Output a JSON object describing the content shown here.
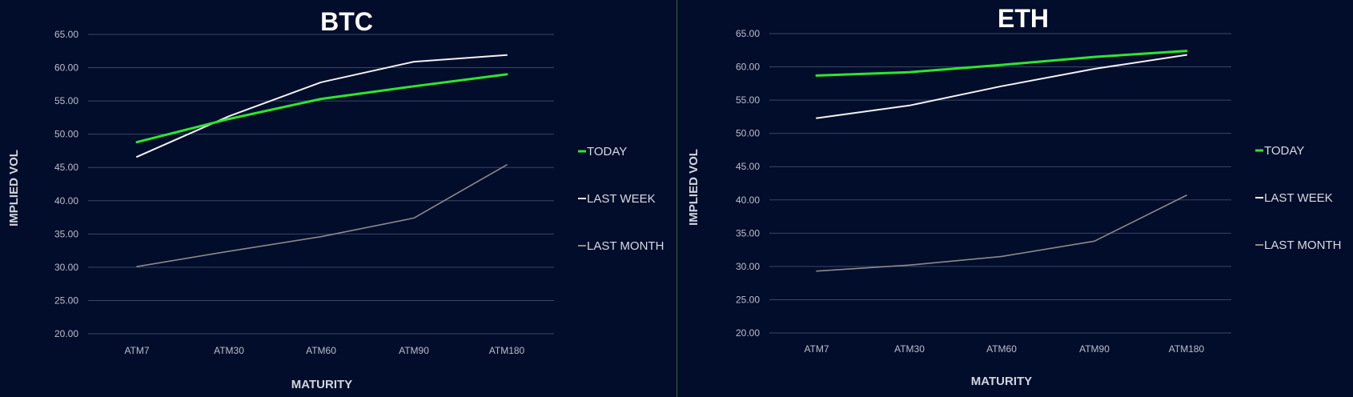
{
  "colors": {
    "background": "#020d2b",
    "gridline": "#3b4664",
    "today": "#2ee52e",
    "last_week": "#f2f2f2",
    "last_month": "#8a8a8a"
  },
  "chart_data": [
    {
      "type": "line",
      "title": "BTC",
      "xlabel": "MATURITY",
      "ylabel": "IMPLIED VOL",
      "categories": [
        "ATM7",
        "ATM30",
        "ATM60",
        "ATM90",
        "ATM180"
      ],
      "ylim": [
        20,
        65
      ],
      "yticks": [
        "20.00",
        "25.00",
        "30.00",
        "35.00",
        "40.00",
        "45.00",
        "50.00",
        "55.00",
        "60.00",
        "65.00"
      ],
      "grid": true,
      "legend_position": "right",
      "series": [
        {
          "name": "TODAY",
          "values": [
            48.8,
            52.3,
            55.3,
            57.2,
            59.0
          ]
        },
        {
          "name": "LAST WEEK",
          "values": [
            46.6,
            52.7,
            57.8,
            60.9,
            61.9
          ]
        },
        {
          "name": "LAST MONTH",
          "values": [
            30.1,
            32.4,
            34.6,
            37.4,
            45.4
          ]
        }
      ]
    },
    {
      "type": "line",
      "title": "ETH",
      "xlabel": "MATURITY",
      "ylabel": "IMPLIED VOL",
      "categories": [
        "ATM7",
        "ATM30",
        "ATM60",
        "ATM90",
        "ATM180"
      ],
      "ylim": [
        20,
        65
      ],
      "yticks": [
        "20.00",
        "25.00",
        "30.00",
        "35.00",
        "40.00",
        "45.00",
        "50.00",
        "55.00",
        "60.00",
        "65.00"
      ],
      "grid": true,
      "legend_position": "right",
      "series": [
        {
          "name": "TODAY",
          "values": [
            58.7,
            59.2,
            60.3,
            61.5,
            62.4
          ]
        },
        {
          "name": "LAST WEEK",
          "values": [
            52.3,
            54.2,
            57.1,
            59.7,
            61.8
          ]
        },
        {
          "name": "LAST MONTH",
          "values": [
            29.3,
            30.2,
            31.5,
            33.8,
            40.7
          ]
        }
      ]
    }
  ]
}
